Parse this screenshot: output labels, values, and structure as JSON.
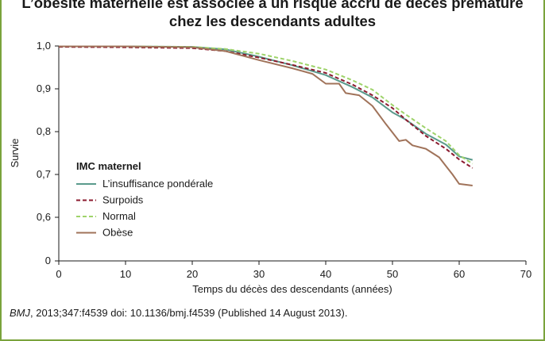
{
  "title_line1": "L’obésité maternelle est associée à un risque accru de décès prématuré",
  "title_line2": "chez les descendants adultes",
  "citation_journal": "BMJ",
  "citation_rest": ", 2013;347:f4539 doi: 10.1136/bmj.f4539 (Published 14 August 2013).",
  "colors": {
    "frame": "#7aa33c"
  },
  "chart_data": {
    "type": "line",
    "xlabel": "Temps du décès des descendants (années)",
    "ylabel": "Survie",
    "xlim": [
      0,
      70
    ],
    "ylim": [
      0.5,
      1.0
    ],
    "xticks": [
      0,
      10,
      20,
      30,
      40,
      50,
      60,
      70
    ],
    "xtick_labels": [
      "0",
      "10",
      "20",
      "30",
      "40",
      "50",
      "60",
      "70"
    ],
    "yticks": [
      0.5,
      0.6,
      0.7,
      0.8,
      0.9,
      1.0
    ],
    "ytick_labels": [
      "0",
      "0,6",
      "0,7",
      "0,8",
      "0,9",
      "1,0"
    ],
    "grid": false,
    "legend_title": "IMC maternel",
    "legend_position": "center-left",
    "series": [
      {
        "name": "L’insuffisance pondérale",
        "color": "#5a9a8c",
        "dash": "solid",
        "points": [
          [
            0,
            0.999
          ],
          [
            10,
            0.999
          ],
          [
            20,
            0.998
          ],
          [
            25,
            0.992
          ],
          [
            30,
            0.975
          ],
          [
            35,
            0.955
          ],
          [
            40,
            0.932
          ],
          [
            44,
            0.904
          ],
          [
            47,
            0.88
          ],
          [
            50,
            0.845
          ],
          [
            52,
            0.828
          ],
          [
            55,
            0.795
          ],
          [
            58,
            0.77
          ],
          [
            60,
            0.742
          ],
          [
            62,
            0.734
          ]
        ]
      },
      {
        "name": "Surpoids",
        "color": "#8b1a2e",
        "dash": "dashed",
        "points": [
          [
            0,
            0.998
          ],
          [
            10,
            0.997
          ],
          [
            20,
            0.995
          ],
          [
            25,
            0.988
          ],
          [
            30,
            0.973
          ],
          [
            35,
            0.956
          ],
          [
            40,
            0.937
          ],
          [
            44,
            0.91
          ],
          [
            47,
            0.885
          ],
          [
            50,
            0.855
          ],
          [
            52,
            0.828
          ],
          [
            55,
            0.79
          ],
          [
            58,
            0.76
          ],
          [
            60,
            0.735
          ],
          [
            62,
            0.715
          ]
        ]
      },
      {
        "name": "Normal",
        "color": "#9ed36a",
        "dash": "dashed",
        "points": [
          [
            0,
            0.999
          ],
          [
            10,
            0.999
          ],
          [
            20,
            0.998
          ],
          [
            25,
            0.993
          ],
          [
            30,
            0.982
          ],
          [
            35,
            0.965
          ],
          [
            40,
            0.945
          ],
          [
            44,
            0.92
          ],
          [
            47,
            0.898
          ],
          [
            50,
            0.862
          ],
          [
            52,
            0.84
          ],
          [
            55,
            0.808
          ],
          [
            58,
            0.778
          ],
          [
            60,
            0.745
          ],
          [
            62,
            0.725
          ]
        ]
      },
      {
        "name": "Obèse",
        "color": "#a0735a",
        "dash": "solid",
        "points": [
          [
            0,
            0.999
          ],
          [
            10,
            0.999
          ],
          [
            20,
            0.997
          ],
          [
            25,
            0.988
          ],
          [
            30,
            0.967
          ],
          [
            35,
            0.948
          ],
          [
            38,
            0.935
          ],
          [
            40,
            0.912
          ],
          [
            42,
            0.912
          ],
          [
            43,
            0.89
          ],
          [
            45,
            0.885
          ],
          [
            47,
            0.86
          ],
          [
            49,
            0.818
          ],
          [
            51,
            0.778
          ],
          [
            52,
            0.781
          ],
          [
            53,
            0.768
          ],
          [
            55,
            0.76
          ],
          [
            57,
            0.74
          ],
          [
            58,
            0.72
          ],
          [
            59,
            0.7
          ],
          [
            60,
            0.678
          ],
          [
            62,
            0.674
          ]
        ]
      }
    ]
  }
}
